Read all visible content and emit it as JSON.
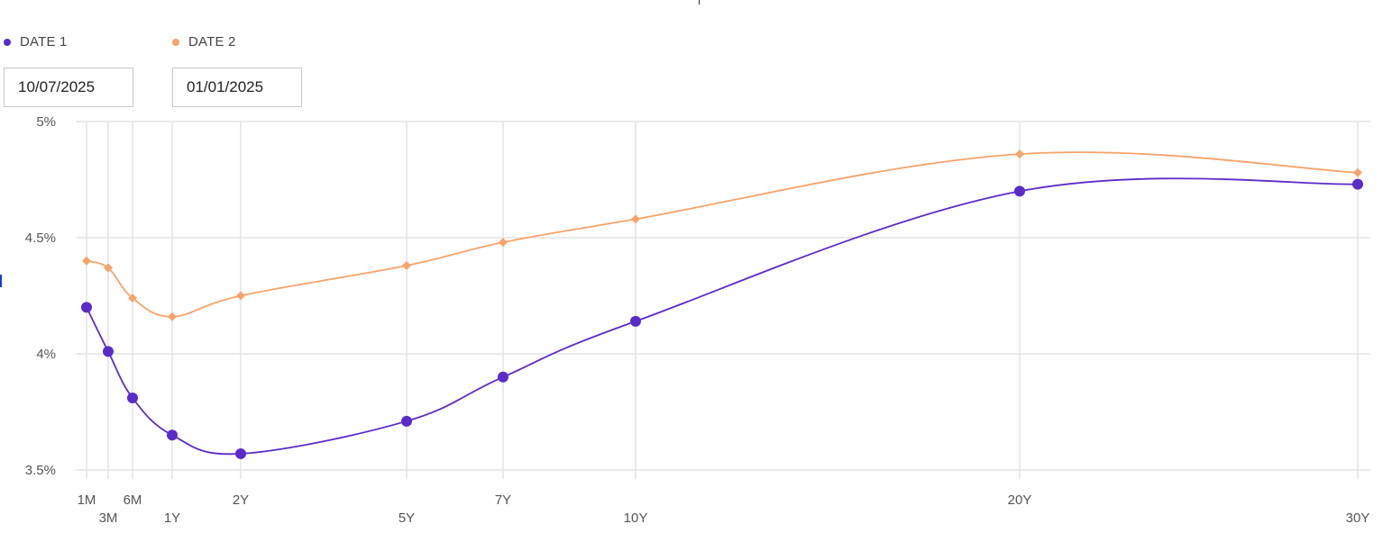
{
  "legend": [
    {
      "label": "DATE 1",
      "color": "#5b2bc9"
    },
    {
      "label": "DATE 2",
      "color": "#f7a36b"
    }
  ],
  "inputs": {
    "date1": "10/07/2025",
    "date2": "01/01/2025"
  },
  "chart_data": {
    "type": "line",
    "categories": [
      "1M",
      "3M",
      "6M",
      "1Y",
      "2Y",
      "5Y",
      "7Y",
      "10Y",
      "20Y",
      "30Y"
    ],
    "x_years": [
      0.0833,
      0.25,
      0.5,
      1,
      2,
      5,
      7,
      10,
      20,
      30
    ],
    "series": [
      {
        "name": "DATE 1",
        "color": "#5b2bc9",
        "marker": "circle",
        "values": [
          4.2,
          4.01,
          3.81,
          3.65,
          3.57,
          3.71,
          3.9,
          4.14,
          4.7,
          4.73
        ]
      },
      {
        "name": "DATE 2",
        "color": "#f7a36b",
        "marker": "diamond",
        "values": [
          4.4,
          4.37,
          4.24,
          4.16,
          4.25,
          4.38,
          4.48,
          4.58,
          4.86,
          4.78
        ]
      }
    ],
    "yticks": [
      "5%",
      "4.5%",
      "4%",
      "3.5%"
    ],
    "ytick_values": [
      5,
      4.5,
      4,
      3.5
    ],
    "ylim": [
      3.5,
      5
    ],
    "grid": true,
    "legend_position": "top-left"
  }
}
